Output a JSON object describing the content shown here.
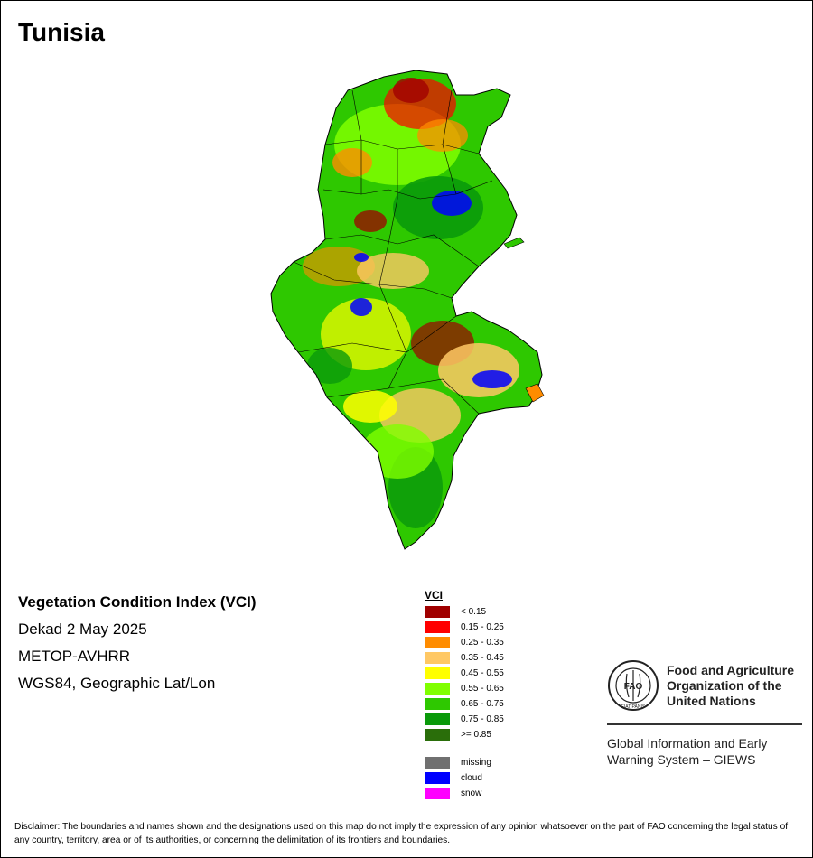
{
  "map": {
    "title": "Tunisia"
  },
  "info": {
    "index_name": "Vegetation Condition Index (VCI)",
    "period": "Dekad 2 May 2025",
    "sensor": "METOP-AVHRR",
    "projection": "WGS84, Geographic Lat/Lon"
  },
  "legend": {
    "title": "VCI",
    "classes": [
      {
        "label": "< 0.15",
        "color": "#a00000"
      },
      {
        "label": "0.15 - 0.25",
        "color": "#ff0000"
      },
      {
        "label": "0.25 - 0.35",
        "color": "#ff8c00"
      },
      {
        "label": "0.35 - 0.45",
        "color": "#ffc864"
      },
      {
        "label": "0.45 - 0.55",
        "color": "#ffff00"
      },
      {
        "label": "0.55 - 0.65",
        "color": "#80ff00"
      },
      {
        "label": "0.65 - 0.75",
        "color": "#2ec800"
      },
      {
        "label": "0.75 - 0.85",
        "color": "#0a9a0a"
      },
      {
        "label": ">= 0.85",
        "color": "#2a6e0a"
      }
    ],
    "special": [
      {
        "label": "missing",
        "color": "#707070"
      },
      {
        "label": "cloud",
        "color": "#0000ff"
      },
      {
        "label": "snow",
        "color": "#ff00ff"
      }
    ]
  },
  "fao": {
    "logo_text": "FAO",
    "logo_motto": "FIAT PANIS",
    "org_line1": "Food and Agriculture",
    "org_line2": "Organization of the",
    "org_line3": "United Nations",
    "giews_line1": "Global Information and Early",
    "giews_line2": "Warning System – GIEWS"
  },
  "disclaimer": "Disclaimer: The boundaries and names shown and the designations used on this map do not imply the expression of any opinion whatsoever on the part of FAO concerning the legal status of any country, territory, area or of its authorities, or concerning the delimitation of its frontiers and boundaries."
}
